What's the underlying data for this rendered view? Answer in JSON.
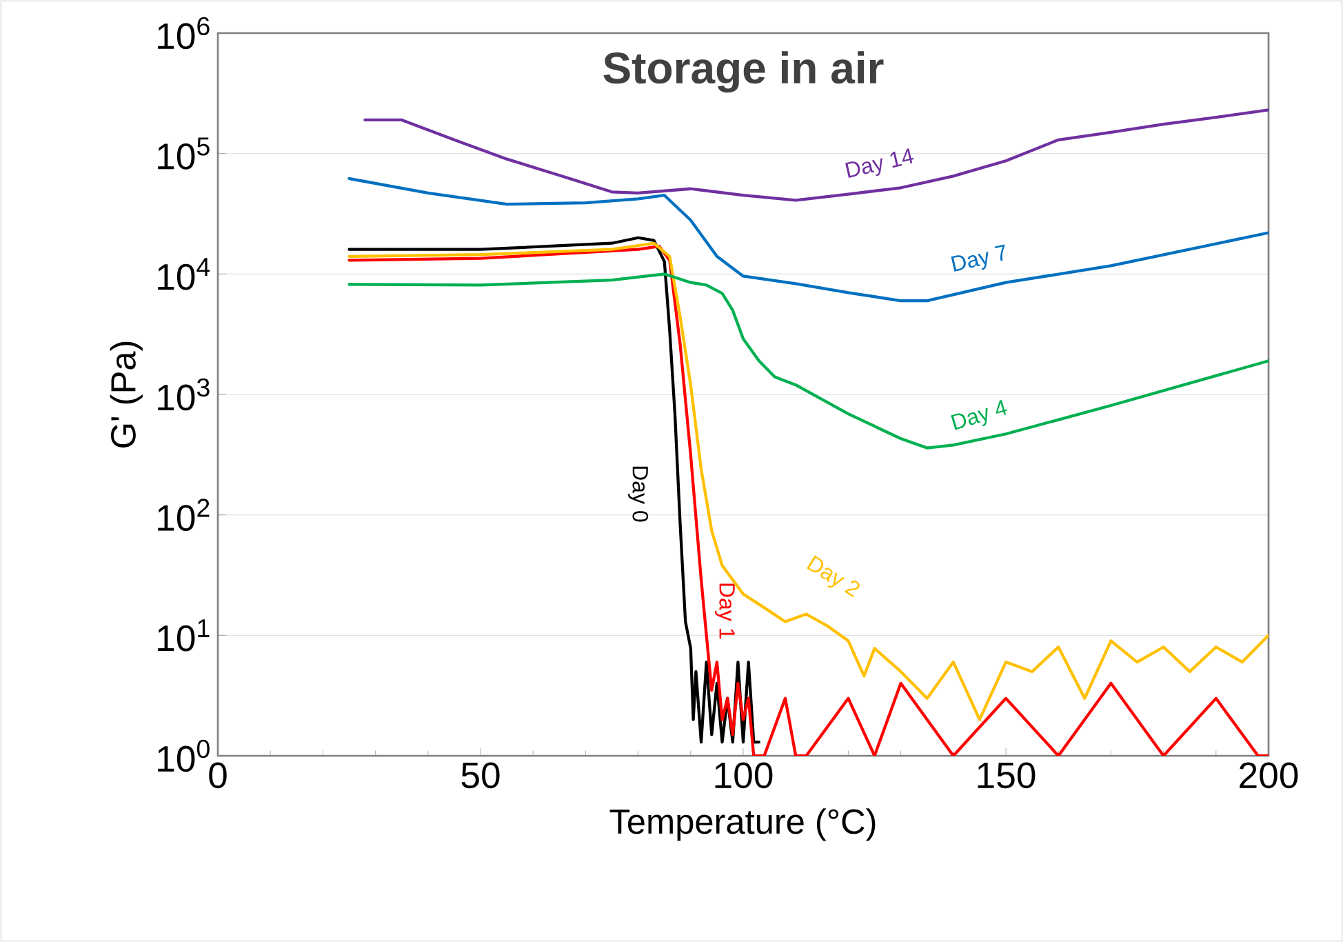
{
  "chart_data": {
    "type": "line",
    "title": "Storage in air",
    "xlabel": "Temperature (°C)",
    "ylabel": "G' (Pa)",
    "log": "y",
    "grid": "y",
    "legend": false,
    "marker": "none",
    "line_style": "solid",
    "xlim": [
      0,
      200
    ],
    "xticks": [
      0,
      50,
      100,
      150,
      200
    ],
    "ylim": [
      1,
      1000000
    ],
    "yticks": [
      {
        "value": 1,
        "label": "10$^{0}$"
      },
      {
        "value": 10,
        "label": "10$^{1}$"
      },
      {
        "value": 100,
        "label": "10$^{2}$"
      },
      {
        "value": 1000,
        "label": "10$^{3}$"
      },
      {
        "value": 10000,
        "label": "10$^{4}$"
      },
      {
        "value": 100000,
        "label": "10$^{5}$"
      },
      {
        "value": 1000000,
        "label": "10$^{6}$"
      }
    ],
    "series": [
      {
        "name": "Day 0",
        "color": "#000000",
        "x": [
          25,
          50,
          75,
          80,
          83,
          85,
          86,
          87,
          88,
          89,
          90,
          90.5,
          91,
          92,
          93,
          94,
          95,
          96,
          97,
          98,
          99,
          100,
          101,
          102,
          103
        ],
        "values": [
          16000,
          16000,
          18000,
          20000,
          19000,
          12700,
          3400,
          690,
          84,
          13,
          7.8,
          2,
          5,
          1.3,
          6,
          1.5,
          4,
          1.3,
          3,
          1.3,
          6,
          1.3,
          6,
          1.3,
          1.3
        ]
      },
      {
        "name": "Day 1",
        "color": "#ff0000",
        "x": [
          25,
          50,
          80,
          84,
          86,
          88,
          90,
          92,
          93,
          94,
          95,
          96,
          97,
          98,
          99,
          100,
          101,
          102,
          104,
          108,
          110,
          112,
          120,
          125,
          130,
          140,
          150,
          160,
          170,
          180,
          190,
          198,
          200
        ],
        "values": [
          13000,
          13500,
          16000,
          17000,
          13000,
          2600,
          315,
          29,
          10,
          3.5,
          6,
          2,
          3,
          1.5,
          4,
          2,
          3,
          1,
          1,
          3,
          1,
          1,
          3,
          1,
          4,
          1,
          3,
          1,
          4,
          1,
          3,
          1,
          1
        ]
      },
      {
        "name": "Day 2",
        "color": "#ffc000",
        "x": [
          25,
          50,
          75,
          83,
          86,
          88,
          90,
          92,
          94,
          96,
          100,
          104,
          108,
          112,
          116,
          120,
          123,
          125,
          130,
          135,
          140,
          145,
          150,
          155,
          160,
          165,
          170,
          175,
          180,
          185,
          190,
          195,
          200
        ],
        "values": [
          14000,
          14500,
          16000,
          18000,
          14000,
          4400,
          1200,
          240,
          74,
          38,
          22,
          17,
          13,
          15,
          12,
          9,
          4.6,
          7.8,
          5,
          3,
          6,
          2,
          6,
          5,
          8,
          3,
          9,
          6,
          8,
          5,
          8,
          6,
          10
        ]
      },
      {
        "name": "Day 4",
        "color": "#00b050",
        "x": [
          25,
          50,
          75,
          85,
          90,
          93,
          96,
          98,
          100,
          103,
          106,
          110,
          120,
          130,
          135,
          140,
          150,
          170,
          200
        ],
        "values": [
          8200,
          8100,
          8900,
          10000,
          8500,
          8100,
          6900,
          5000,
          2900,
          1900,
          1400,
          1200,
          690,
          430,
          360,
          380,
          470,
          810,
          1900
        ]
      },
      {
        "name": "Day 7",
        "color": "#0070c0",
        "x": [
          25,
          40,
          55,
          70,
          80,
          85,
          90,
          95,
          100,
          110,
          120,
          130,
          135,
          150,
          170,
          200
        ],
        "values": [
          62000,
          47000,
          38000,
          39000,
          42000,
          45000,
          28000,
          14000,
          9600,
          8300,
          7000,
          6000,
          6000,
          8500,
          11700,
          22000
        ]
      },
      {
        "name": "Day 14",
        "color": "#7030a0",
        "x": [
          28,
          35,
          45,
          55,
          65,
          75,
          80,
          90,
          100,
          110,
          120,
          130,
          140,
          150,
          160,
          170,
          180,
          190,
          200
        ],
        "values": [
          190000,
          190000,
          130000,
          90000,
          66000,
          48000,
          47000,
          51000,
          45000,
          41000,
          46000,
          52000,
          65000,
          87000,
          130000,
          150000,
          175000,
          200000,
          230000
        ]
      }
    ]
  }
}
